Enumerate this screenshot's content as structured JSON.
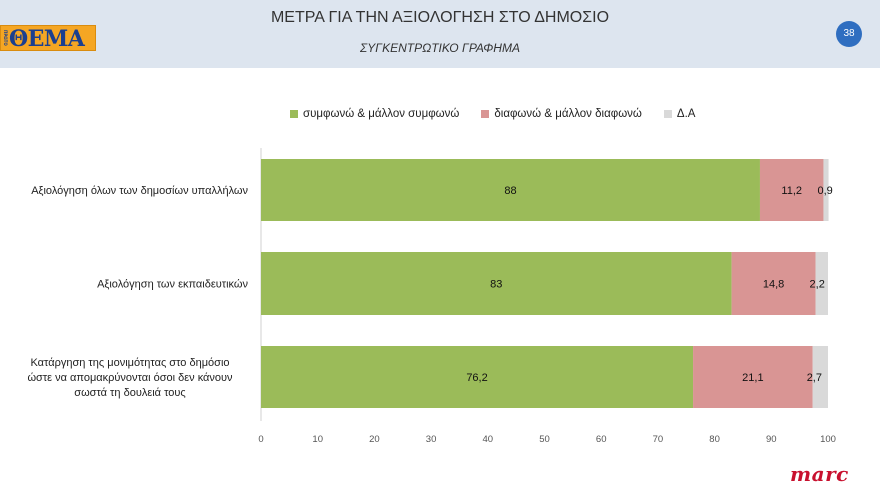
{
  "header": {
    "title": "ΜΕΤΡΑ ΓΙΑ ΤΗΝ ΑΞΙΟΛΟΓΗΣΗ ΣΤΟ ΔΗΜΟΣΙΟ",
    "subtitle": "ΣΥΓΚΕΝΤΡΩΤΙΚΟ ΓΡΑΦΗΜΑ",
    "slide_number": "38",
    "logo_text": "ΘΕΜΑ",
    "logo_small": "ΠΡΩΤΟ"
  },
  "footer": {
    "brand": "marc"
  },
  "chart_data": {
    "type": "bar",
    "orientation": "horizontal",
    "stacked": true,
    "title": "",
    "xlabel": "",
    "ylabel": "",
    "xlim": [
      0,
      100
    ],
    "ticks": [
      0,
      10,
      20,
      30,
      40,
      50,
      60,
      70,
      80,
      90,
      100
    ],
    "categories": [
      [
        "Αξιολόγηση όλων των δημοσίων υπαλλήλων"
      ],
      [
        "Αξιολόγηση των εκπαιδευτικών"
      ],
      [
        "Κατάργηση της μονιμότητας στο δημόσιο",
        "ώστε να απομακρύνονται όσοι δεν κάνουν",
        "σωστά τη δουλειά τους"
      ]
    ],
    "series": [
      {
        "name": "συμφωνώ & μάλλον συμφωνώ",
        "color": "#9bbb59",
        "values": [
          88,
          83,
          76.2
        ],
        "labels": [
          "88",
          "83",
          "76,2"
        ]
      },
      {
        "name": "διαφωνώ & μάλλον διαφωνώ",
        "color": "#d99594",
        "values": [
          11.2,
          14.8,
          21.1
        ],
        "labels": [
          "11,2",
          "14,8",
          "21,1"
        ]
      },
      {
        "name": "Δ.Α",
        "color": "#d9d9d9",
        "values": [
          0.9,
          2.2,
          2.7
        ],
        "labels": [
          "0,9",
          "2,2",
          "2,7"
        ]
      }
    ],
    "legend_position": "top",
    "grid": false
  }
}
